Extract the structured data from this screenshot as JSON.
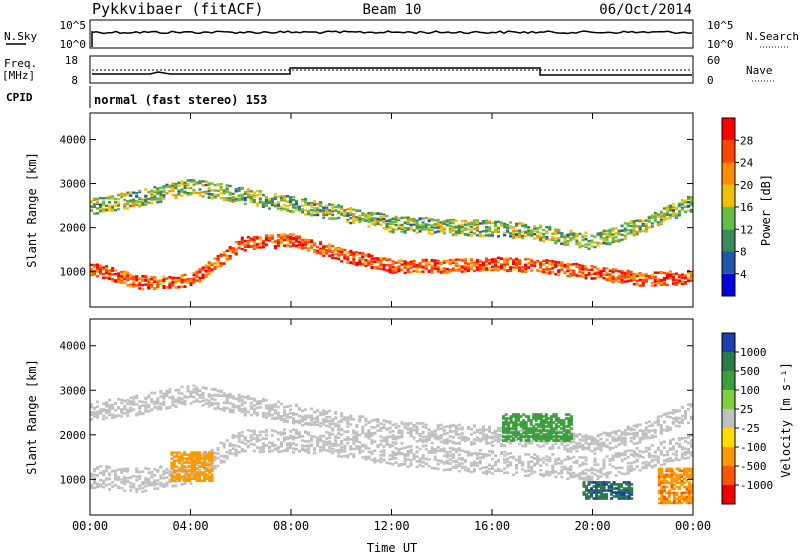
{
  "header": {
    "station": "Pykkvibaer (fitACF)",
    "beam": "Beam 10",
    "date": "06/Oct/2014"
  },
  "panels": {
    "nsky": {
      "label": "N.Sky",
      "ticks_left": [
        "10^5",
        "10^0"
      ],
      "right_label": "N.Search",
      "ticks_right": [
        "10^5",
        "10^0"
      ]
    },
    "freq": {
      "label_line1": "Freq.",
      "label_line2": "[MHz]",
      "ticks_left": [
        "18",
        "8"
      ],
      "right_label": "Nave",
      "ticks_right": [
        "60",
        "0"
      ]
    },
    "cpid": {
      "label": "CPID",
      "text": "normal (fast stereo) 153"
    }
  },
  "chart_data": [
    {
      "type": "heatmap",
      "name": "power",
      "ylabel": "Slant Range [km]",
      "yticks": [
        "4000",
        "3000",
        "2000",
        "1000"
      ],
      "ylim": [
        200,
        4600
      ],
      "xticks": [
        "00:00",
        "04:00",
        "08:00",
        "12:00",
        "16:00",
        "20:00",
        "00:00"
      ],
      "colorbar_label": "Power [dB]",
      "colorbar_ticks": [
        "28",
        "24",
        "20",
        "16",
        "12",
        "8",
        "4"
      ],
      "colorbar_colors": [
        "#0000dd",
        "#2255aa",
        "#3a8a5a",
        "#66bb44",
        "#f0c000",
        "#ff8c00",
        "#ff4400",
        "#ff0000"
      ],
      "bands": [
        {
          "t": [
            0,
            2,
            4,
            6,
            8,
            10,
            12,
            14,
            16,
            18,
            20,
            22,
            24
          ],
          "r": [
            1100,
            780,
            820,
            1650,
            1750,
            1400,
            1150,
            1150,
            1200,
            1150,
            1000,
            850,
            900
          ],
          "w": 150,
          "power": 24
        },
        {
          "t": [
            0,
            2,
            4,
            6,
            8,
            10,
            12,
            14,
            16,
            18,
            20,
            22,
            24
          ],
          "r": [
            2500,
            2700,
            2950,
            2750,
            2550,
            2350,
            2100,
            2050,
            2000,
            1900,
            1700,
            2100,
            2600
          ],
          "w": 180,
          "power": 12
        }
      ]
    },
    {
      "type": "heatmap",
      "name": "velocity",
      "ylabel": "Slant Range [km]",
      "yticks": [
        "4000",
        "3000",
        "2000",
        "1000"
      ],
      "ylim": [
        200,
        4600
      ],
      "xticks": [
        "00:00",
        "04:00",
        "08:00",
        "12:00",
        "16:00",
        "20:00",
        "00:00"
      ],
      "xlabel": "Time UT",
      "colorbar_label": "Velocity [m s⁻¹]",
      "colorbar_ticks": [
        "1000",
        "500",
        "100",
        "25",
        "-25",
        "-100",
        "-500",
        "-1000"
      ],
      "colorbar_colors": [
        "#1a3fb0",
        "#2a7a4a",
        "#3aa13a",
        "#7fd040",
        "#c0c0c0",
        "#ffdd00",
        "#ff9900",
        "#ff5500",
        "#ee0000"
      ],
      "bands": [
        {
          "t": [
            0,
            2,
            4,
            6,
            8,
            10,
            12,
            14,
            16,
            18,
            20,
            22,
            24
          ],
          "r": [
            1100,
            1000,
            1200,
            1900,
            1900,
            1800,
            1600,
            1500,
            1400,
            1350,
            1250,
            1500,
            1800
          ],
          "w": 260,
          "velocity": 0
        },
        {
          "t": [
            0,
            2,
            4,
            6,
            8,
            10,
            12,
            14,
            16,
            18,
            20,
            22,
            24
          ],
          "r": [
            2550,
            2700,
            2950,
            2700,
            2500,
            2300,
            2100,
            2050,
            2000,
            1950,
            1800,
            2100,
            2550
          ],
          "w": 220,
          "velocity": 0
        }
      ],
      "patches": [
        {
          "t0": 3.2,
          "t1": 4.8,
          "r0": 1000,
          "r1": 1650,
          "velocity": -300
        },
        {
          "t0": 16.4,
          "t1": 19.2,
          "r0": 1900,
          "r1": 2500,
          "velocity": 300
        },
        {
          "t0": 19.6,
          "t1": 21.6,
          "r0": 600,
          "r1": 1000,
          "velocity": 900
        },
        {
          "t0": 22.6,
          "t1": 24.0,
          "r0": 500,
          "r1": 1300,
          "velocity": -400
        }
      ]
    }
  ]
}
